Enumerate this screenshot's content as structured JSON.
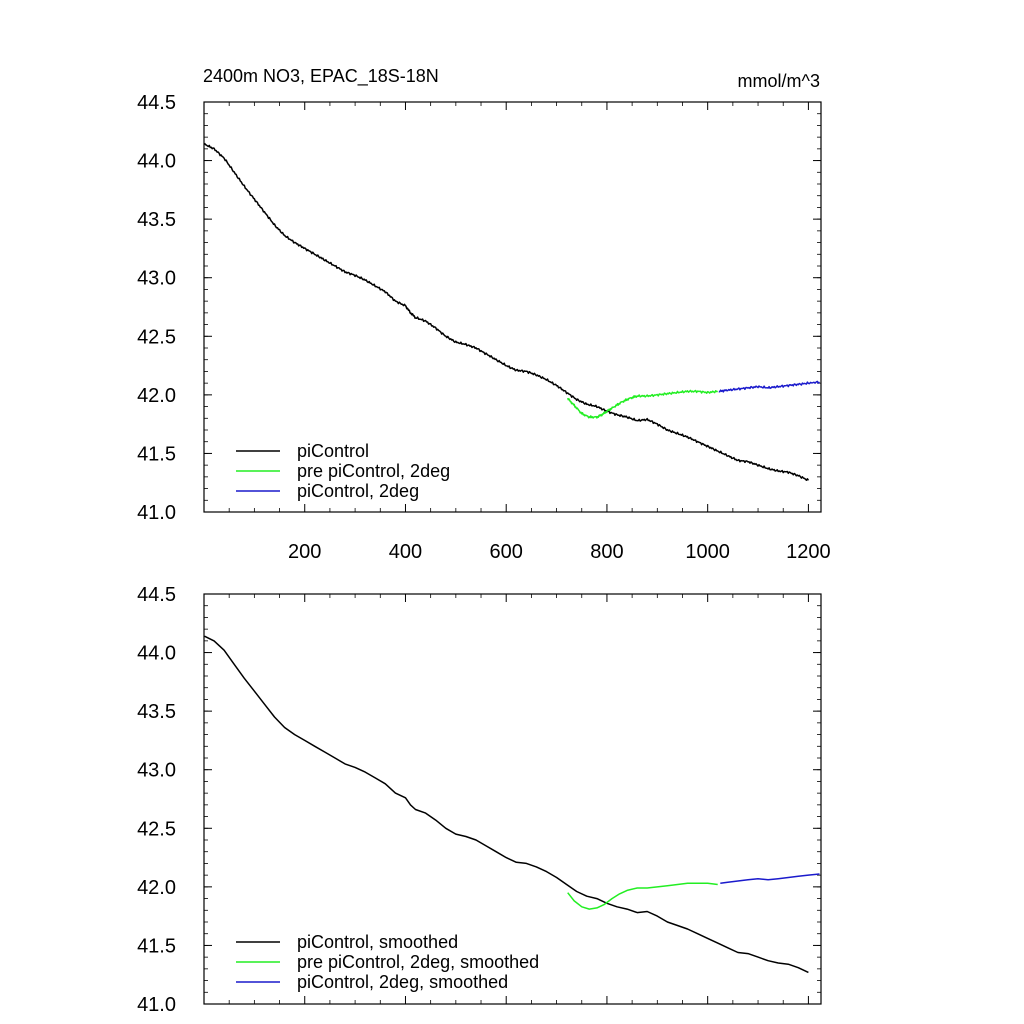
{
  "chart_data": [
    {
      "type": "line",
      "title": "2400m NO3, EPAC_18S-18N",
      "units": "mmol/m^3",
      "xlim": [
        0,
        1225
      ],
      "ylim": [
        41.0,
        44.5
      ],
      "x_ticks": [
        200,
        400,
        600,
        800,
        1000,
        1200
      ],
      "x_tick_labels": [
        "200",
        "400",
        "600",
        "800",
        "1000",
        "1200"
      ],
      "y_ticks": [
        41.0,
        41.5,
        42.0,
        42.5,
        43.0,
        43.5,
        44.0,
        44.5
      ],
      "y_tick_labels": [
        "41.0",
        "41.5",
        "42.0",
        "42.5",
        "43.0",
        "43.5",
        "44.0",
        "44.5"
      ],
      "grid": false,
      "legend_position": "bottom-left",
      "series": [
        {
          "name": "piControl",
          "color": "#000000",
          "points": [
            [
              1,
              44.14
            ],
            [
              20,
              44.1
            ],
            [
              40,
              44.02
            ],
            [
              60,
              43.9
            ],
            [
              80,
              43.78
            ],
            [
              100,
              43.67
            ],
            [
              120,
              43.56
            ],
            [
              140,
              43.45
            ],
            [
              160,
              43.36
            ],
            [
              180,
              43.3
            ],
            [
              200,
              43.25
            ],
            [
              220,
              43.2
            ],
            [
              240,
              43.15
            ],
            [
              260,
              43.1
            ],
            [
              280,
              43.05
            ],
            [
              300,
              43.02
            ],
            [
              320,
              42.98
            ],
            [
              340,
              42.93
            ],
            [
              360,
              42.88
            ],
            [
              380,
              42.8
            ],
            [
              400,
              42.76
            ],
            [
              410,
              42.7
            ],
            [
              420,
              42.66
            ],
            [
              440,
              42.63
            ],
            [
              460,
              42.57
            ],
            [
              480,
              42.5
            ],
            [
              500,
              42.45
            ],
            [
              520,
              42.43
            ],
            [
              540,
              42.4
            ],
            [
              560,
              42.35
            ],
            [
              580,
              42.3
            ],
            [
              600,
              42.25
            ],
            [
              620,
              42.21
            ],
            [
              640,
              42.2
            ],
            [
              660,
              42.17
            ],
            [
              680,
              42.13
            ],
            [
              700,
              42.08
            ],
            [
              720,
              42.02
            ],
            [
              740,
              41.96
            ],
            [
              760,
              41.92
            ],
            [
              780,
              41.9
            ],
            [
              800,
              41.86
            ],
            [
              820,
              41.83
            ],
            [
              840,
              41.81
            ],
            [
              860,
              41.78
            ],
            [
              880,
              41.79
            ],
            [
              900,
              41.75
            ],
            [
              920,
              41.7
            ],
            [
              940,
              41.67
            ],
            [
              960,
              41.64
            ],
            [
              980,
              41.6
            ],
            [
              1000,
              41.56
            ],
            [
              1020,
              41.52
            ],
            [
              1040,
              41.48
            ],
            [
              1060,
              41.44
            ],
            [
              1080,
              41.43
            ],
            [
              1100,
              41.4
            ],
            [
              1120,
              41.37
            ],
            [
              1140,
              41.35
            ],
            [
              1160,
              41.34
            ],
            [
              1180,
              41.31
            ],
            [
              1200,
              41.27
            ]
          ]
        },
        {
          "name": "pre piControl, 2deg",
          "color": "#22ee22",
          "points": [
            [
              722,
              41.97
            ],
            [
              735,
              41.91
            ],
            [
              750,
              41.84
            ],
            [
              765,
              41.81
            ],
            [
              780,
              41.81
            ],
            [
              790,
              41.83
            ],
            [
              800,
              41.86
            ],
            [
              815,
              41.9
            ],
            [
              830,
              41.94
            ],
            [
              845,
              41.97
            ],
            [
              860,
              41.99
            ],
            [
              880,
              41.99
            ],
            [
              900,
              42.0
            ],
            [
              920,
              42.01
            ],
            [
              940,
              42.02
            ],
            [
              960,
              42.03
            ],
            [
              980,
              42.03
            ],
            [
              1000,
              42.02
            ],
            [
              1020,
              42.03
            ]
          ]
        },
        {
          "name": "piControl, 2deg",
          "color": "#1a1acc",
          "points": [
            [
              1022,
              42.03
            ],
            [
              1040,
              42.04
            ],
            [
              1060,
              42.05
            ],
            [
              1080,
              42.06
            ],
            [
              1100,
              42.07
            ],
            [
              1120,
              42.06
            ],
            [
              1140,
              42.07
            ],
            [
              1160,
              42.08
            ],
            [
              1180,
              42.09
            ],
            [
              1200,
              42.1
            ],
            [
              1222,
              42.11
            ]
          ]
        }
      ]
    },
    {
      "type": "line",
      "title": "",
      "xlim": [
        0,
        1225
      ],
      "ylim": [
        41.0,
        44.5
      ],
      "y_ticks": [
        41.0,
        41.5,
        42.0,
        42.5,
        43.0,
        43.5,
        44.0,
        44.5
      ],
      "y_tick_labels": [
        "41.0",
        "41.5",
        "42.0",
        "42.5",
        "43.0",
        "43.5",
        "44.0",
        "44.5"
      ],
      "grid": false,
      "legend_position": "bottom-left",
      "series": [
        {
          "name": "piControl, smoothed",
          "color": "#000000",
          "points": [
            [
              1,
              44.14
            ],
            [
              20,
              44.1
            ],
            [
              40,
              44.02
            ],
            [
              60,
              43.9
            ],
            [
              80,
              43.78
            ],
            [
              100,
              43.67
            ],
            [
              120,
              43.56
            ],
            [
              140,
              43.45
            ],
            [
              160,
              43.36
            ],
            [
              180,
              43.3
            ],
            [
              200,
              43.25
            ],
            [
              220,
              43.2
            ],
            [
              240,
              43.15
            ],
            [
              260,
              43.1
            ],
            [
              280,
              43.05
            ],
            [
              300,
              43.02
            ],
            [
              320,
              42.98
            ],
            [
              340,
              42.93
            ],
            [
              360,
              42.88
            ],
            [
              380,
              42.8
            ],
            [
              400,
              42.76
            ],
            [
              410,
              42.7
            ],
            [
              420,
              42.66
            ],
            [
              440,
              42.63
            ],
            [
              460,
              42.57
            ],
            [
              480,
              42.5
            ],
            [
              500,
              42.45
            ],
            [
              520,
              42.43
            ],
            [
              540,
              42.4
            ],
            [
              560,
              42.35
            ],
            [
              580,
              42.3
            ],
            [
              600,
              42.25
            ],
            [
              620,
              42.21
            ],
            [
              640,
              42.2
            ],
            [
              660,
              42.17
            ],
            [
              680,
              42.13
            ],
            [
              700,
              42.08
            ],
            [
              720,
              42.02
            ],
            [
              740,
              41.96
            ],
            [
              760,
              41.92
            ],
            [
              780,
              41.9
            ],
            [
              800,
              41.86
            ],
            [
              820,
              41.83
            ],
            [
              840,
              41.81
            ],
            [
              860,
              41.78
            ],
            [
              880,
              41.79
            ],
            [
              900,
              41.75
            ],
            [
              920,
              41.7
            ],
            [
              940,
              41.67
            ],
            [
              960,
              41.64
            ],
            [
              980,
              41.6
            ],
            [
              1000,
              41.56
            ],
            [
              1020,
              41.52
            ],
            [
              1040,
              41.48
            ],
            [
              1060,
              41.44
            ],
            [
              1080,
              41.43
            ],
            [
              1100,
              41.4
            ],
            [
              1120,
              41.37
            ],
            [
              1140,
              41.35
            ],
            [
              1160,
              41.34
            ],
            [
              1180,
              41.31
            ],
            [
              1200,
              41.27
            ]
          ]
        },
        {
          "name": "pre piControl, 2deg, smoothed",
          "color": "#22ee22",
          "points": [
            [
              722,
              41.95
            ],
            [
              735,
              41.88
            ],
            [
              750,
              41.83
            ],
            [
              765,
              41.81
            ],
            [
              780,
              41.82
            ],
            [
              795,
              41.85
            ],
            [
              810,
              41.9
            ],
            [
              825,
              41.94
            ],
            [
              840,
              41.97
            ],
            [
              860,
              41.99
            ],
            [
              880,
              41.99
            ],
            [
              900,
              42.0
            ],
            [
              920,
              42.01
            ],
            [
              940,
              42.02
            ],
            [
              960,
              42.03
            ],
            [
              980,
              42.03
            ],
            [
              1000,
              42.03
            ],
            [
              1020,
              42.02
            ]
          ]
        },
        {
          "name": "piControl, 2deg, smoothed",
          "color": "#1a1acc",
          "points": [
            [
              1025,
              42.03
            ],
            [
              1040,
              42.04
            ],
            [
              1060,
              42.05
            ],
            [
              1080,
              42.06
            ],
            [
              1100,
              42.07
            ],
            [
              1120,
              42.06
            ],
            [
              1140,
              42.07
            ],
            [
              1160,
              42.08
            ],
            [
              1180,
              42.09
            ],
            [
              1200,
              42.1
            ],
            [
              1222,
              42.11
            ]
          ]
        }
      ]
    }
  ]
}
